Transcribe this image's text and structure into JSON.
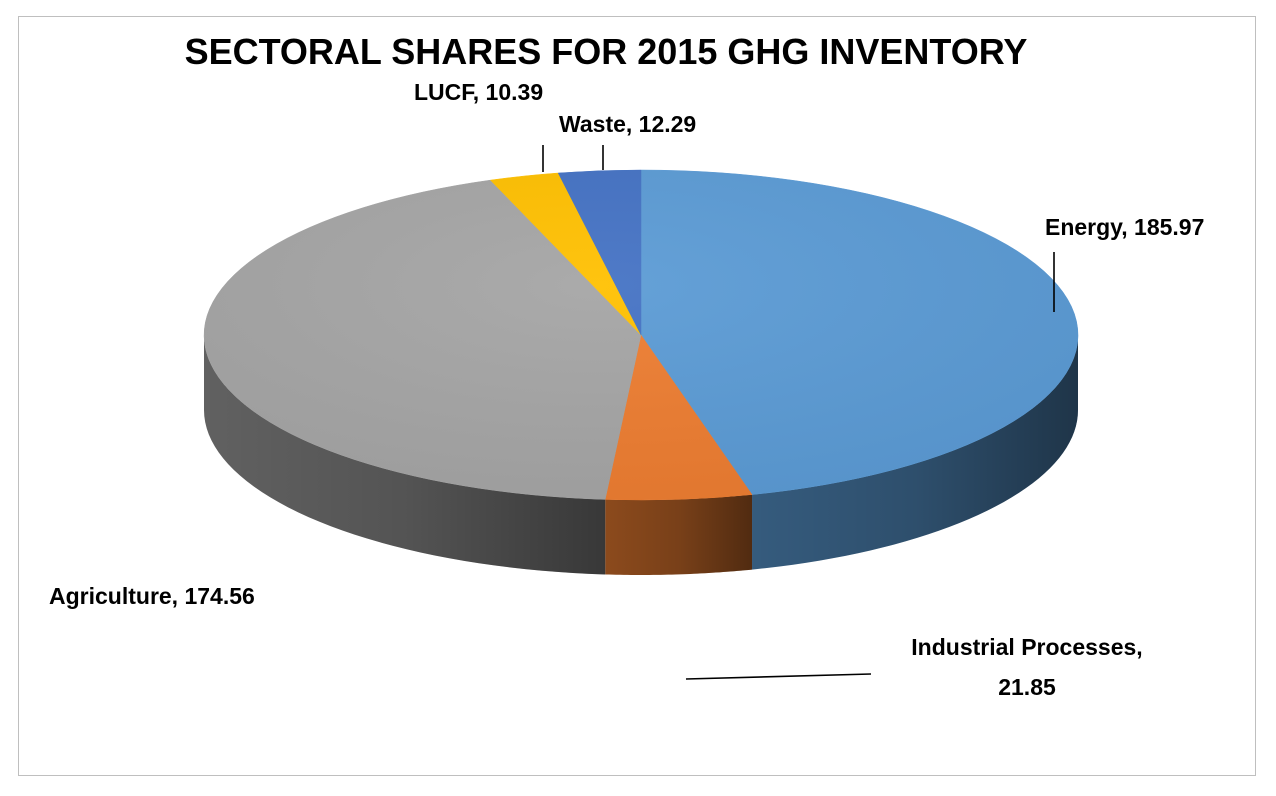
{
  "chart_data": {
    "type": "pie",
    "title": "SECTORAL SHARES FOR 2015 GHG INVENTORY",
    "slices": [
      {
        "name": "Energy",
        "value": 185.97,
        "color": "#5b9bd5",
        "label": "Energy, 185.97"
      },
      {
        "name": "Industrial Processes",
        "value": 21.85,
        "color": "#ed7d31",
        "label_lines": [
          "Industrial Processes,",
          "21.85"
        ]
      },
      {
        "name": "Agriculture",
        "value": 174.56,
        "color": "#a5a5a5",
        "label": "Agriculture, 174.56"
      },
      {
        "name": "LUCF",
        "value": 10.39,
        "color": "#ffc000",
        "label": "LUCF, 10.39"
      },
      {
        "name": "Waste",
        "value": 12.29,
        "color": "#4472c4",
        "label": "Waste, 12.29"
      }
    ],
    "style": "3d",
    "data_labels": "category, value",
    "legend": "none"
  }
}
